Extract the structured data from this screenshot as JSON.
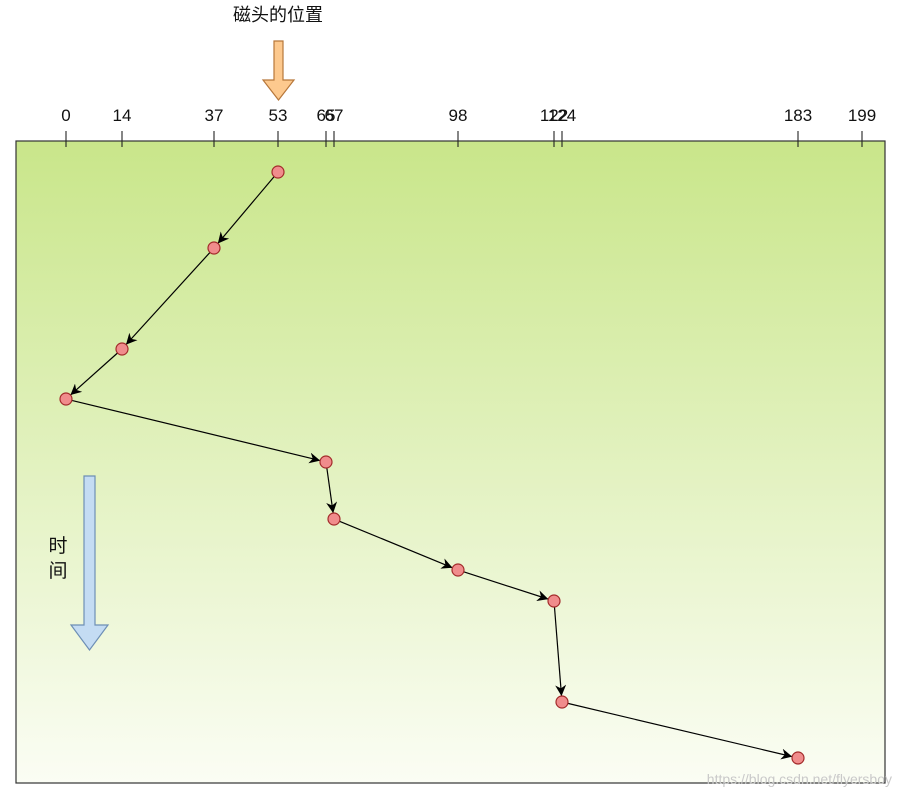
{
  "diagram": {
    "head_label": "磁头的位置",
    "time_label_chars": [
      "时",
      "间"
    ],
    "ticks": [
      0,
      14,
      37,
      53,
      65,
      67,
      98,
      122,
      124,
      183,
      199
    ],
    "visit_sequence": [
      53,
      37,
      14,
      0,
      65,
      67,
      98,
      122,
      124,
      183
    ],
    "colors": {
      "panel_top": "#c9e68a",
      "panel_bottom": "#fbfdf4",
      "panel_border": "#333333",
      "head_arrow_fill": "#fdc98e",
      "head_arrow_stroke": "#b7773a",
      "time_arrow_fill": "#c4dcf3",
      "time_arrow_stroke": "#6d8fb5",
      "node_fill": "#f08c8c",
      "node_stroke": "#a32b2b",
      "edge": "#000000"
    }
  },
  "watermark": "https://blog.csdn.net/flyersboy"
}
